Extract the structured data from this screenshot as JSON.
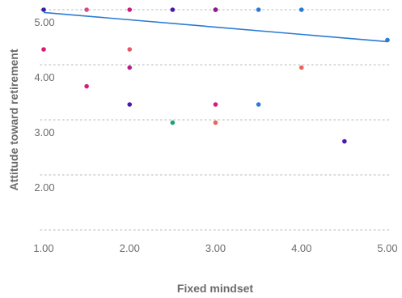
{
  "chart_data": {
    "type": "scatter",
    "xlabel": "Fixed mindset",
    "ylabel": "Attitude toward retirement",
    "xlim": [
      1.0,
      5.0
    ],
    "ylim": [
      1.5,
      5.25
    ],
    "x_ticks": [
      "1.00",
      "2.00",
      "3.00",
      "4.00",
      "5.00"
    ],
    "y_ticks": [
      "2.00",
      "3.00",
      "4.00",
      "5.00"
    ],
    "y_tick_values": [
      2.0,
      3.0,
      4.0,
      5.0
    ],
    "x_tick_values": [
      1.0,
      2.0,
      3.0,
      4.0,
      5.0
    ],
    "grid": "horizontal-dotted",
    "points": [
      {
        "x": 1.0,
        "y": 5.25,
        "color": "#3d1f9e"
      },
      {
        "x": 1.5,
        "y": 5.25,
        "color": "#d84a8c"
      },
      {
        "x": 2.0,
        "y": 5.25,
        "color": "#c8207a"
      },
      {
        "x": 2.5,
        "y": 5.25,
        "color": "#4a18b0"
      },
      {
        "x": 3.0,
        "y": 5.25,
        "color": "#5a1c9e"
      },
      {
        "x": 3.0,
        "y": 5.25,
        "color": "#8a1c8e"
      },
      {
        "x": 3.5,
        "y": 5.25,
        "color": "#2b7bd3"
      },
      {
        "x": 4.0,
        "y": 5.25,
        "color": "#2b7bd3"
      },
      {
        "x": 1.0,
        "y": 4.5,
        "color": "#d81b7a"
      },
      {
        "x": 2.0,
        "y": 4.5,
        "color": "#e05a6a"
      },
      {
        "x": 2.0,
        "y": 4.17,
        "color": "#b3208a"
      },
      {
        "x": 4.0,
        "y": 4.17,
        "color": "#e8665e"
      },
      {
        "x": 1.5,
        "y": 3.83,
        "color": "#d81b7a"
      },
      {
        "x": 2.0,
        "y": 3.5,
        "color": "#4a18b0"
      },
      {
        "x": 3.0,
        "y": 3.5,
        "color": "#d81b7a"
      },
      {
        "x": 3.5,
        "y": 3.5,
        "color": "#2b7bd3"
      },
      {
        "x": 2.5,
        "y": 3.17,
        "color": "#1aa37a"
      },
      {
        "x": 3.0,
        "y": 3.17,
        "color": "#e8665e"
      },
      {
        "x": 4.5,
        "y": 2.83,
        "color": "#4a18b0"
      },
      {
        "x": 5.0,
        "y": 4.67,
        "color": "#2b7bd3"
      }
    ],
    "trendline": {
      "x": [
        1.0,
        5.0
      ],
      "y": [
        5.17,
        4.64
      ],
      "color": "#2b7bd3"
    }
  }
}
